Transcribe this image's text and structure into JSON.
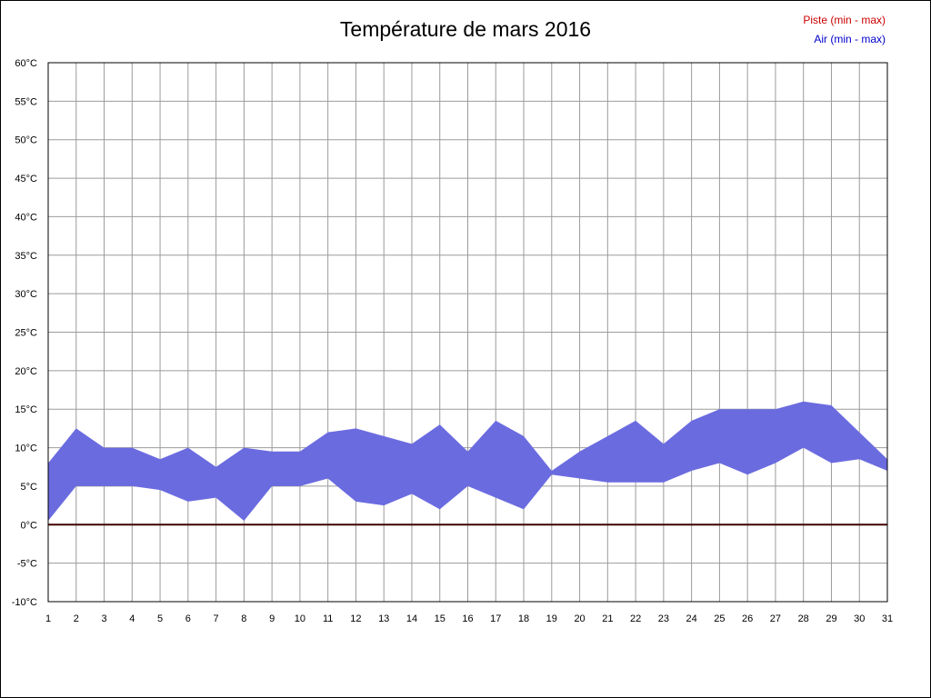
{
  "page": {
    "background": "#ffffff",
    "border_color": "#000000"
  },
  "chart_data": {
    "type": "area",
    "title": "Température de mars 2016",
    "legend": [
      {
        "label": "Piste (min - max)",
        "color": "#cc0000"
      },
      {
        "label": "Air (min - max)",
        "color": "#0000cc"
      }
    ],
    "x": [
      1,
      2,
      3,
      4,
      5,
      6,
      7,
      8,
      9,
      10,
      11,
      12,
      13,
      14,
      15,
      16,
      17,
      18,
      19,
      20,
      21,
      22,
      23,
      24,
      25,
      26,
      27,
      28,
      29,
      30,
      31
    ],
    "xlabel": "",
    "ylabel": "",
    "ylim": [
      -10,
      60
    ],
    "ytick_step": 5,
    "ytick_suffix": "°C",
    "grid": true,
    "grid_color": "#9b9b9b",
    "plot_border_color": "#000000",
    "series": [
      {
        "name": "Air (min - max)",
        "type": "band",
        "fill_color": "#6b6be0",
        "min": [
          0.5,
          5,
          5,
          5,
          4.5,
          3,
          3.5,
          0.5,
          5,
          5,
          6,
          3,
          2.5,
          4,
          2,
          5,
          3.5,
          2,
          6.5,
          6,
          5.5,
          5.5,
          5.5,
          7,
          8,
          6.5,
          8,
          10,
          8,
          8.5,
          7
        ],
        "max": [
          8,
          12.5,
          10,
          10,
          8.5,
          10,
          7.5,
          10,
          9.5,
          9.5,
          12,
          12.5,
          11.5,
          10.5,
          13,
          9.5,
          13.5,
          11.5,
          7,
          9.5,
          11.5,
          13.5,
          10.5,
          13.5,
          15,
          15,
          15,
          16,
          15.5,
          12,
          8.5
        ]
      },
      {
        "name": "Piste (min - max)",
        "type": "line",
        "color": "#400000",
        "values": [
          0,
          0,
          0,
          0,
          0,
          0,
          0,
          0,
          0,
          0,
          0,
          0,
          0,
          0,
          0,
          0,
          0,
          0,
          0,
          0,
          0,
          0,
          0,
          0,
          0,
          0,
          0,
          0,
          0,
          0,
          0
        ]
      }
    ]
  }
}
